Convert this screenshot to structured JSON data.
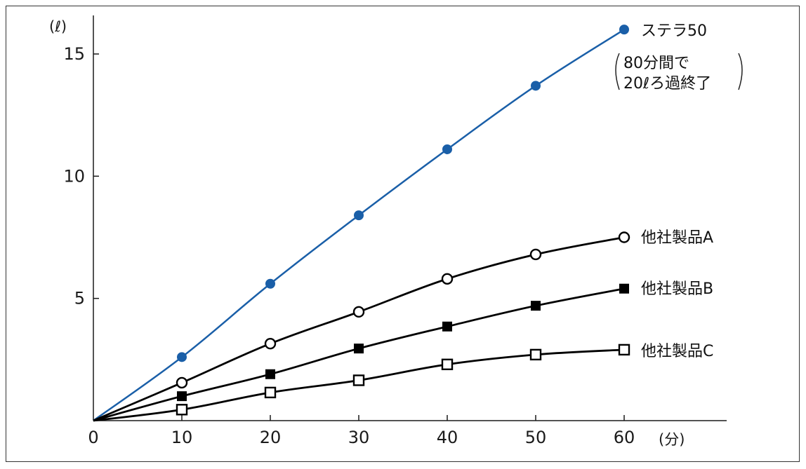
{
  "chart_data": {
    "type": "line",
    "title": "",
    "xlabel": "(分)",
    "ylabel": "(ℓ)",
    "xlim": [
      0,
      70
    ],
    "ylim": [
      0,
      16.5
    ],
    "x_ticks": [
      0,
      10,
      20,
      30,
      40,
      50,
      60
    ],
    "y_ticks": [
      5,
      10,
      15
    ],
    "x_tick_labels": [
      "0",
      "10",
      "20",
      "30",
      "40",
      "50",
      "60"
    ],
    "y_tick_labels": [
      "5",
      "10",
      "15"
    ],
    "grid": false,
    "series": [
      {
        "name": "ステラ50",
        "color": "#1a5fa8",
        "marker": "filled-circle",
        "x": [
          0,
          10,
          20,
          30,
          40,
          50,
          60
        ],
        "y": [
          0,
          2.6,
          5.6,
          8.4,
          11.1,
          13.7,
          16.0
        ]
      },
      {
        "name": "他社製品A",
        "color": "#000000",
        "marker": "open-circle",
        "x": [
          0,
          10,
          20,
          30,
          40,
          50,
          60
        ],
        "y": [
          0,
          1.55,
          3.15,
          4.45,
          5.8,
          6.8,
          7.5
        ]
      },
      {
        "name": "他社製品B",
        "color": "#000000",
        "marker": "filled-square",
        "x": [
          0,
          10,
          20,
          30,
          40,
          50,
          60
        ],
        "y": [
          0,
          1.0,
          1.9,
          2.95,
          3.85,
          4.7,
          5.4
        ]
      },
      {
        "name": "他社製品C",
        "color": "#000000",
        "marker": "open-square",
        "x": [
          0,
          10,
          20,
          30,
          40,
          50,
          60
        ],
        "y": [
          0,
          0.45,
          1.15,
          1.65,
          2.3,
          2.7,
          2.9
        ]
      }
    ],
    "annotation": {
      "line1": "80分間で",
      "line2": "20ℓろ過終了"
    }
  }
}
